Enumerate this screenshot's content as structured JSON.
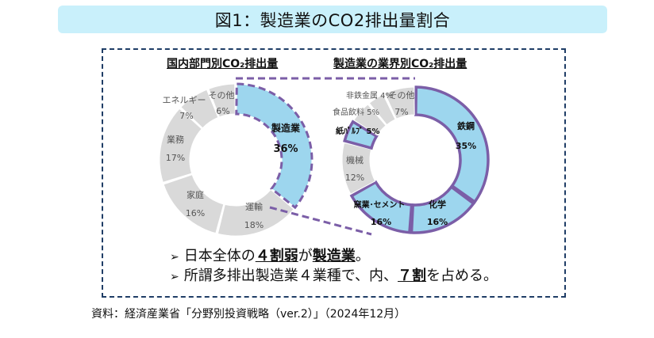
{
  "title": "図1：製造業のCO2排出量割合",
  "left_chart_title": "国内部門別CO₂排出量",
  "right_chart_title": "製造業の業界別CO₂排出量",
  "bullets": [
    {
      "pre": "日本全体の",
      "bold1": "４割弱",
      "mid": "が",
      "bold2": "製造業",
      "post": "。"
    },
    {
      "pre": "所謂多排出製造業４業種で、内、",
      "bold1": "７割",
      "post": "を占める。"
    }
  ],
  "source": "資料：経済産業省「分野別投資戦略（ver.2）」（2024年12月）",
  "colors": {
    "highlight": "#9dd6ee",
    "other": "#d9d9d9",
    "highlight_border": "#7b5ea7",
    "frame_border": "#1f3d66",
    "title_bg": "#c9f0fb"
  },
  "chart_data": [
    {
      "type": "pie",
      "title": "国内部門別CO₂排出量",
      "categories": [
        "製造業",
        "運輸",
        "家庭",
        "業務",
        "エネルギー",
        "その他"
      ],
      "values": [
        36,
        18,
        16,
        17,
        7,
        6
      ],
      "unit": "%",
      "highlight": [
        "製造業"
      ]
    },
    {
      "type": "pie",
      "title": "製造業の業界別CO₂排出量",
      "categories": [
        "鉄鋼",
        "化学",
        "窯業・セメント",
        "機械",
        "紙パルプ",
        "食品飲料",
        "非鉄金属",
        "その他"
      ],
      "values": [
        35,
        16,
        16,
        12,
        5,
        5,
        4,
        7
      ],
      "unit": "%",
      "highlight": [
        "鉄鋼",
        "化学",
        "窯業・セメント",
        "紙パルプ"
      ]
    }
  ],
  "labels": {
    "left": [
      {
        "name": "製造業",
        "pct": "36%"
      },
      {
        "name": "運輸",
        "pct": "18%"
      },
      {
        "name": "家庭",
        "pct": "16%"
      },
      {
        "name": "業務",
        "pct": "17%"
      },
      {
        "name": "エネルギー",
        "pct": "7%"
      },
      {
        "name": "その他",
        "pct": "6%"
      }
    ],
    "right": [
      {
        "name": "鉄鋼",
        "pct": "35%"
      },
      {
        "name": "化学",
        "pct": "16%"
      },
      {
        "name": "窯業･セメント",
        "pct": "16%"
      },
      {
        "name": "機械",
        "pct": "12%"
      },
      {
        "name": "紙ﾊﾟﾙﾌﾟ",
        "pct": "5%"
      },
      {
        "name": "食品飲料",
        "pct": "5%"
      },
      {
        "name": "非鉄金属",
        "pct": "4%"
      },
      {
        "name": "その他",
        "pct": "7%"
      }
    ]
  }
}
